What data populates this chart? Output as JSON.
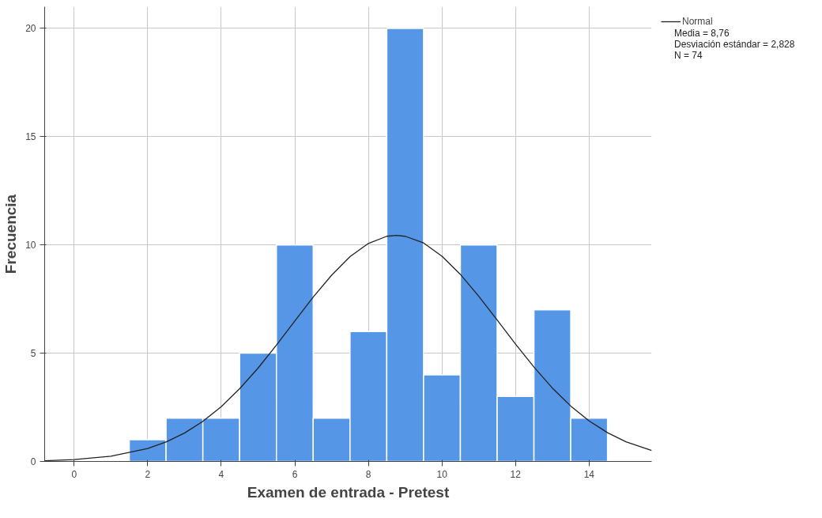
{
  "chart_data": {
    "type": "histogram",
    "xlabel": "Examen de entrada - Pretest",
    "ylabel": "Frecuencia",
    "bins": [
      1.5,
      2.5,
      3.5,
      4.5,
      5.5,
      6.5,
      7.5,
      8.5,
      9.5,
      10.5,
      11.5,
      12.5,
      13.5,
      14.5
    ],
    "values": [
      1,
      2,
      2,
      5,
      10,
      2,
      6,
      20,
      4,
      10,
      3,
      7,
      2
    ],
    "color": "#5596e6",
    "series": [
      {
        "name": "Normal",
        "type": "line",
        "color": "#222222",
        "x": [
          -0.8,
          0,
          1,
          2,
          2.5,
          3,
          3.5,
          4,
          4.5,
          5,
          5.5,
          6,
          6.5,
          7,
          7.5,
          8,
          8.5,
          8.76,
          9,
          9.5,
          10,
          10.5,
          11,
          11.5,
          12,
          12.5,
          13,
          13.5,
          14,
          14.5,
          15,
          15.7
        ],
        "values": [
          0.03,
          0.09,
          0.24,
          0.6,
          0.9,
          1.31,
          1.85,
          2.53,
          3.36,
          4.31,
          5.37,
          6.49,
          7.59,
          8.6,
          9.46,
          10.07,
          10.4,
          10.44,
          10.4,
          10.09,
          9.48,
          8.64,
          7.63,
          6.53,
          5.42,
          4.36,
          3.39,
          2.56,
          1.87,
          1.33,
          0.91,
          0.51
        ]
      }
    ],
    "annotations": [
      "Media = 8,76",
      "Desviación estándar = 2,828",
      "N = 74"
    ],
    "xlim": [
      -0.8,
      15.7
    ],
    "ylim": [
      0,
      21
    ],
    "xticks": [
      0,
      2,
      4,
      6,
      8,
      10,
      12,
      14
    ],
    "yticks": [
      0,
      5,
      10,
      15,
      20
    ],
    "grid": true,
    "legend": "top right"
  }
}
